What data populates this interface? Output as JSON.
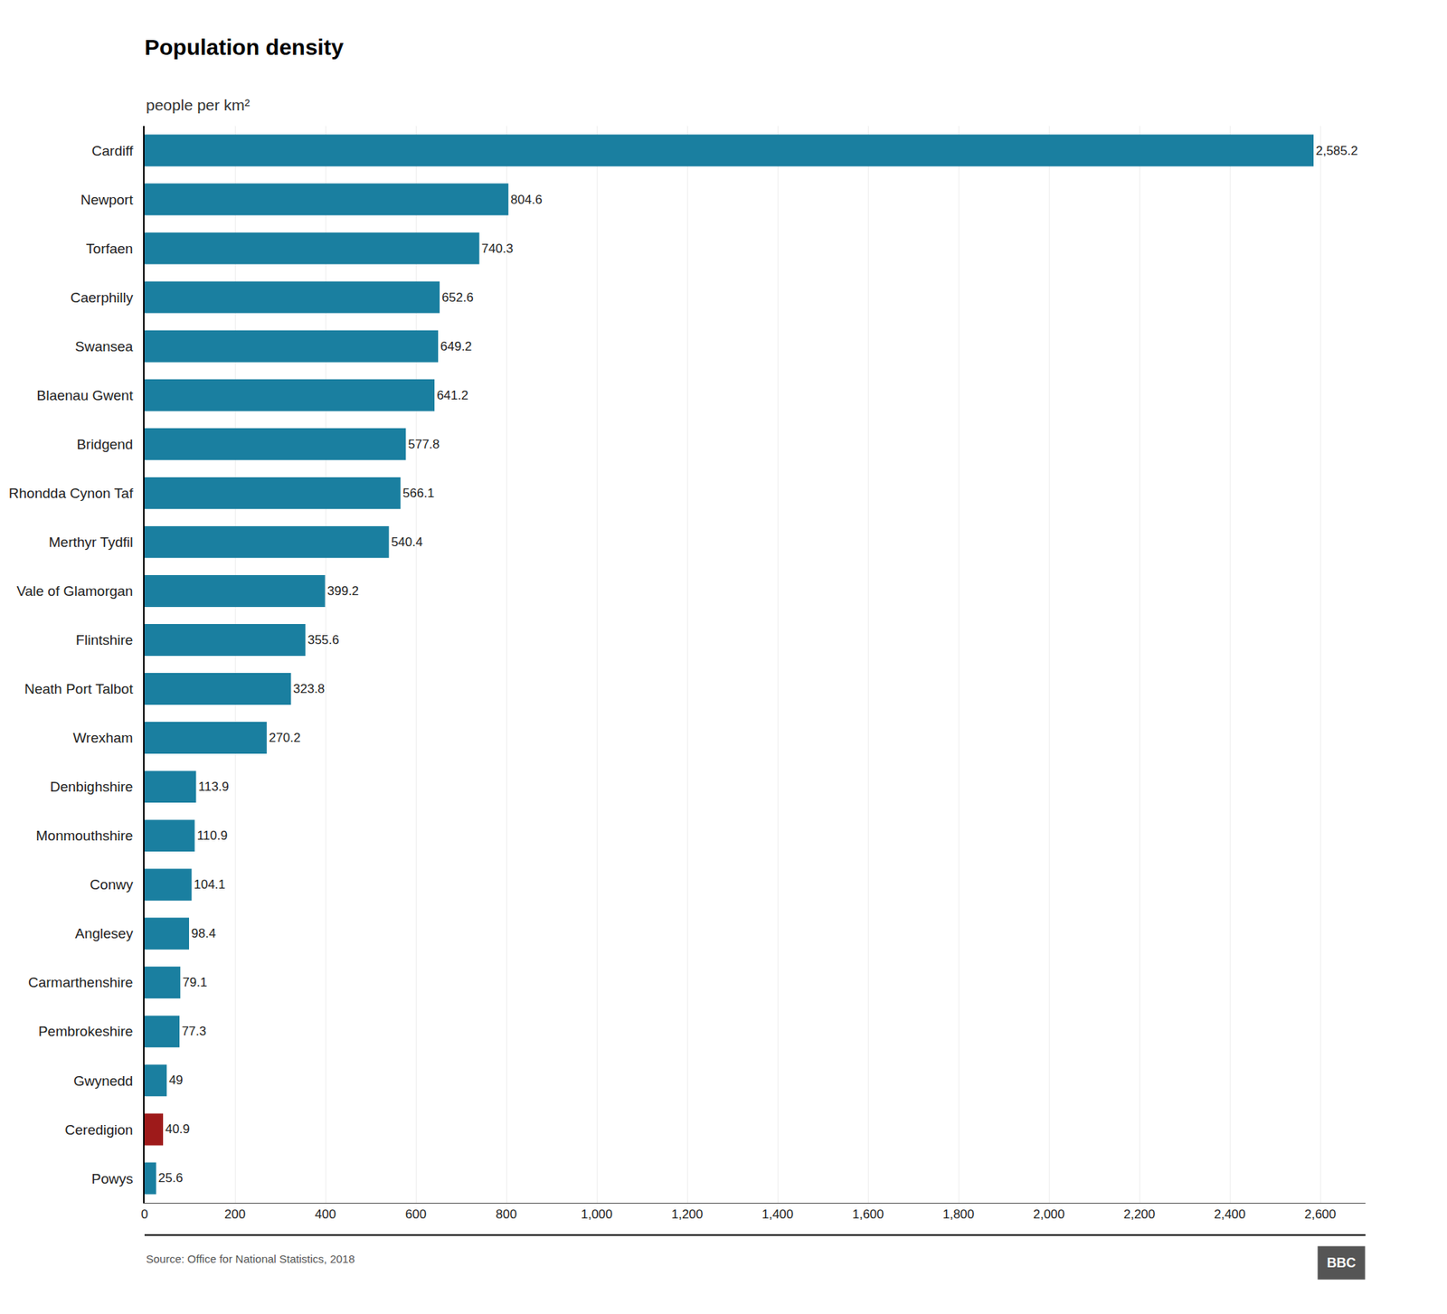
{
  "chart_data": {
    "type": "bar",
    "orientation": "horizontal",
    "title": "Population density",
    "subtitle": "people per km²",
    "source": "Source: Office for National Statistics, 2018",
    "annotations": [
      "BBC"
    ],
    "categories": [
      "Cardiff",
      "Newport",
      "Torfaen",
      "Caerphilly",
      "Swansea",
      "Blaenau Gwent",
      "Bridgend",
      "Rhondda Cynon Taf",
      "Merthyr Tydfil",
      "Vale of Glamorgan",
      "Flintshire",
      "Neath Port Talbot",
      "Wrexham",
      "Denbighshire",
      "Monmouthshire",
      "Conwy",
      "Anglesey",
      "Carmarthenshire",
      "Pembrokeshire",
      "Gwynedd",
      "Ceredigion",
      "Powys"
    ],
    "values": [
      2585.2,
      804.6,
      740.3,
      652.6,
      649.2,
      641.2,
      577.8,
      566.1,
      540.4,
      399.2,
      355.6,
      323.8,
      270.2,
      113.9,
      110.9,
      104.1,
      98.4,
      79.1,
      77.3,
      49.0,
      40.9,
      25.6
    ],
    "data_labels": true,
    "value_labels": [
      "2,585.2",
      "804.6",
      "740.3",
      "652.6",
      "649.2",
      "641.2",
      "577.8",
      "566.1",
      "540.4",
      "399.2",
      "355.6",
      "323.8",
      "270.2",
      "113.9",
      "110.9",
      "104.1",
      "98.4",
      "79.1",
      "77.3",
      "49",
      "40.9",
      "25.6"
    ],
    "colors": [
      "#1a7fa0",
      "#1a7fa0",
      "#1a7fa0",
      "#1a7fa0",
      "#1a7fa0",
      "#1a7fa0",
      "#1a7fa0",
      "#1a7fa0",
      "#1a7fa0",
      "#1a7fa0",
      "#1a7fa0",
      "#1a7fa0",
      "#1a7fa0",
      "#1a7fa0",
      "#1a7fa0",
      "#1a7fa0",
      "#1a7fa0",
      "#1a7fa0",
      "#1a7fa0",
      "#1a7fa0",
      "#9e1a1a",
      "#1a7fa0"
    ],
    "xlim": [
      0,
      2700
    ],
    "xticks": [
      0,
      200,
      400,
      600,
      800,
      {
        "value": 1000,
        "label": "1,000"
      },
      {
        "value": 1200,
        "label": "1,200"
      },
      {
        "value": 1400,
        "label": "1,400"
      },
      {
        "value": 1600,
        "label": "1,600"
      },
      {
        "value": 1800,
        "label": "1,800"
      },
      {
        "value": 2000,
        "label": "2,000"
      },
      {
        "value": 2200,
        "label": "2,200"
      },
      {
        "value": 2400,
        "label": "2,400"
      },
      {
        "value": 2600,
        "label": "2,600"
      }
    ],
    "grid": true
  }
}
